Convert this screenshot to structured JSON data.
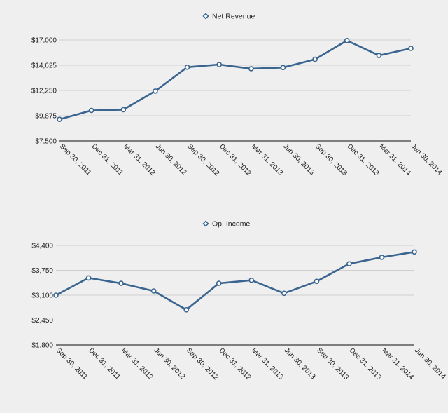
{
  "charts": {
    "revenue": {
      "legend_label": "Net Revenue",
      "colors": {
        "line": "#3a6590",
        "marker_fill": "#ffffff",
        "grid": "#cfcfcf",
        "axis": "#3a3a3a"
      },
      "y_ticks": [
        "$7,500",
        "$9,875",
        "$12,250",
        "$14,625",
        "$17,000"
      ],
      "x_ticks": [
        "Sep 30, 2011",
        "Dec 31, 2011",
        "Mar 31, 2012",
        "Jun 30, 2012",
        "Sep 30, 2012",
        "Dec 31, 2012",
        "Mar 31, 2013",
        "Jun 30, 2013",
        "Sep 30, 2013",
        "Dec 31, 2013",
        "Mar 31, 2014",
        "Jun 30, 2014"
      ]
    },
    "income": {
      "legend_label": "Op. Income",
      "colors": {
        "line": "#3a6590",
        "marker_fill": "#ffffff",
        "grid": "#cfcfcf",
        "axis": "#3a3a3a"
      },
      "y_ticks": [
        "$1,800",
        "$2,450",
        "$3,100",
        "$3,750",
        "$4,400"
      ],
      "x_ticks": [
        "Sep 30, 2011",
        "Dec 31, 2011",
        "Mar 31, 2012",
        "Jun 30, 2012",
        "Sep 30, 2012",
        "Dec 31, 2012",
        "Mar 31, 2013",
        "Jun 30, 2013",
        "Sep 30, 2013",
        "Dec 31, 2013",
        "Mar 31, 2014",
        "Jun 30, 2014"
      ]
    }
  },
  "chart_data": [
    {
      "type": "line",
      "title": "",
      "xlabel": "",
      "ylabel": "",
      "legend_position": "top-center",
      "grid": true,
      "ylim": [
        7500,
        17000
      ],
      "categories": [
        "Sep 30, 2011",
        "Dec 31, 2011",
        "Mar 31, 2012",
        "Jun 30, 2012",
        "Sep 30, 2012",
        "Dec 31, 2012",
        "Mar 31, 2013",
        "Jun 30, 2013",
        "Sep 30, 2013",
        "Dec 31, 2013",
        "Mar 31, 2014",
        "Jun 30, 2014"
      ],
      "series": [
        {
          "name": "Net Revenue",
          "values": [
            9530,
            10370,
            10440,
            12190,
            14440,
            14690,
            14300,
            14410,
            15180,
            16950,
            15540,
            16210
          ]
        }
      ]
    },
    {
      "type": "line",
      "title": "",
      "xlabel": "",
      "ylabel": "",
      "legend_position": "top-center",
      "grid": true,
      "ylim": [
        1800,
        4400
      ],
      "categories": [
        "Sep 30, 2011",
        "Dec 31, 2011",
        "Mar 31, 2012",
        "Jun 30, 2012",
        "Sep 30, 2012",
        "Dec 31, 2012",
        "Mar 31, 2013",
        "Jun 30, 2013",
        "Sep 30, 2013",
        "Dec 31, 2013",
        "Mar 31, 2014",
        "Jun 30, 2014"
      ],
      "series": [
        {
          "name": "Op. Income",
          "values": [
            3100,
            3550,
            3410,
            3210,
            2720,
            3410,
            3490,
            3150,
            3460,
            3920,
            4090,
            4230
          ]
        }
      ]
    }
  ]
}
